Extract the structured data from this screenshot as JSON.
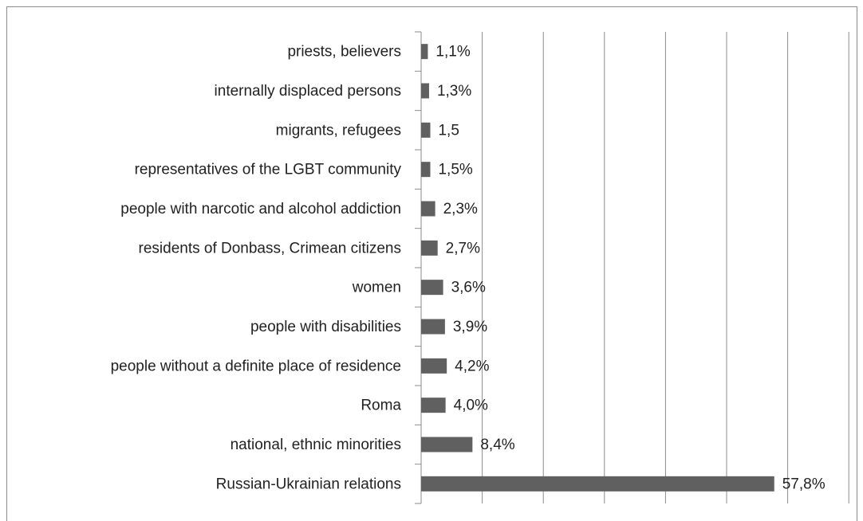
{
  "chart_data": {
    "type": "bar",
    "orientation": "horizontal",
    "categories": [
      "priests, believers",
      "internally displaced persons",
      "migrants, refugees",
      "representatives of the LGBT community",
      "people with narcotic and alcohol addiction",
      "residents of Donbass, Crimean citizens",
      "women",
      "people with disabilities",
      "people without a definite place of residence",
      "Roma",
      "national, ethnic minorities",
      "Russian-Ukrainian relations"
    ],
    "values": [
      1.1,
      1.3,
      1.5,
      1.5,
      2.3,
      2.7,
      3.6,
      3.9,
      4.2,
      4.0,
      8.4,
      57.8
    ],
    "value_labels": [
      "1,1%",
      "1,3%",
      "1,5",
      "1,5%",
      "2,3%",
      "2,7%",
      "3,6%",
      "3,9%",
      "4,2%",
      "4,0%",
      "8,4%",
      "57,8%"
    ],
    "color": "#606060",
    "xlim": [
      0,
      70
    ],
    "xticks": [
      0,
      10,
      20,
      30,
      40,
      50,
      60,
      70
    ],
    "grid": true
  }
}
